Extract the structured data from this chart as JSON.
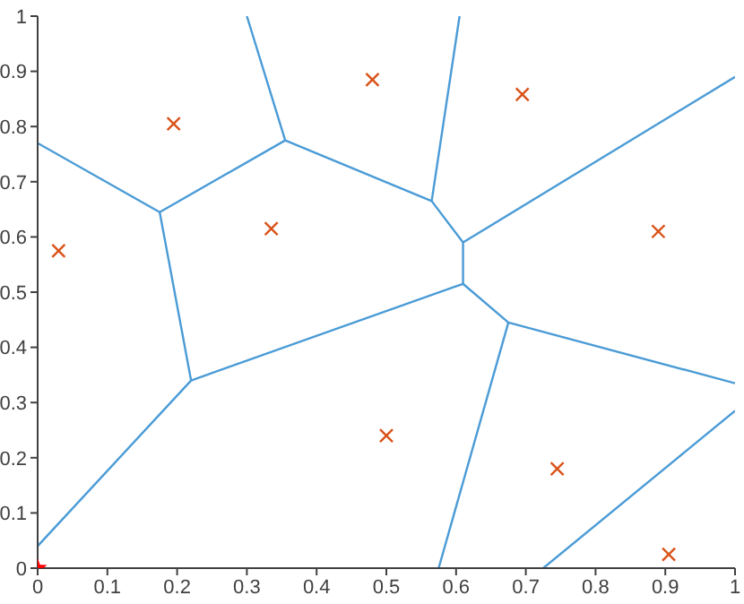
{
  "chart_data": {
    "type": "line",
    "xlim": [
      0,
      1
    ],
    "ylim": [
      0,
      1
    ],
    "xticks": [
      0,
      0.1,
      0.2,
      0.3,
      0.4,
      0.5,
      0.6,
      0.7,
      0.8,
      0.9,
      1
    ],
    "yticks": [
      0,
      0.1,
      0.2,
      0.3,
      0.4,
      0.5,
      0.6,
      0.7,
      0.8,
      0.9,
      1
    ],
    "grid": false,
    "line_style": "solid",
    "marker": "none",
    "series": [
      {
        "color": "#4a9bd6",
        "x": [
          0,
          0.175,
          0.355,
          0.3
        ],
        "values": [
          0.77,
          0.645,
          0.775,
          1
        ]
      },
      {
        "color": "#4a9bd6",
        "x": [
          0.175,
          0.22,
          0
        ],
        "values": [
          0.645,
          0.34,
          0.04
        ]
      },
      {
        "color": "#4a9bd6",
        "x": [
          0.22,
          0.61,
          0.675,
          1
        ],
        "values": [
          0.34,
          0.515,
          0.445,
          0.335
        ]
      },
      {
        "color": "#4a9bd6",
        "x": [
          0.61,
          0.61,
          0.565,
          0.355
        ],
        "values": [
          0.515,
          0.59,
          0.665,
          0.775
        ]
      },
      {
        "color": "#4a9bd6",
        "x": [
          0.61,
          1
        ],
        "values": [
          0.59,
          0.89
        ]
      },
      {
        "color": "#4a9bd6",
        "x": [
          0.565,
          0.605
        ],
        "values": [
          0.665,
          1
        ]
      },
      {
        "color": "#4a9bd6",
        "x": [
          0.675,
          0.575
        ],
        "values": [
          0.445,
          0
        ]
      },
      {
        "color": "#4a9bd6",
        "x": [
          0.725,
          1
        ],
        "values": [
          0,
          0.285
        ]
      },
      {
        "type": "scatter",
        "marker": "cross",
        "color": "#d95319",
        "x": [
          0.03,
          0.195,
          0.335,
          0.48,
          0.695,
          0.89,
          0.5,
          0.745,
          0.905
        ],
        "values": [
          0.575,
          0.805,
          0.615,
          0.885,
          0.858,
          0.61,
          0.24,
          0.18,
          0.025
        ]
      },
      {
        "type": "scatter",
        "marker": "star",
        "color": "#ff0000",
        "x": [
          0
        ],
        "values": [
          0
        ]
      }
    ]
  }
}
